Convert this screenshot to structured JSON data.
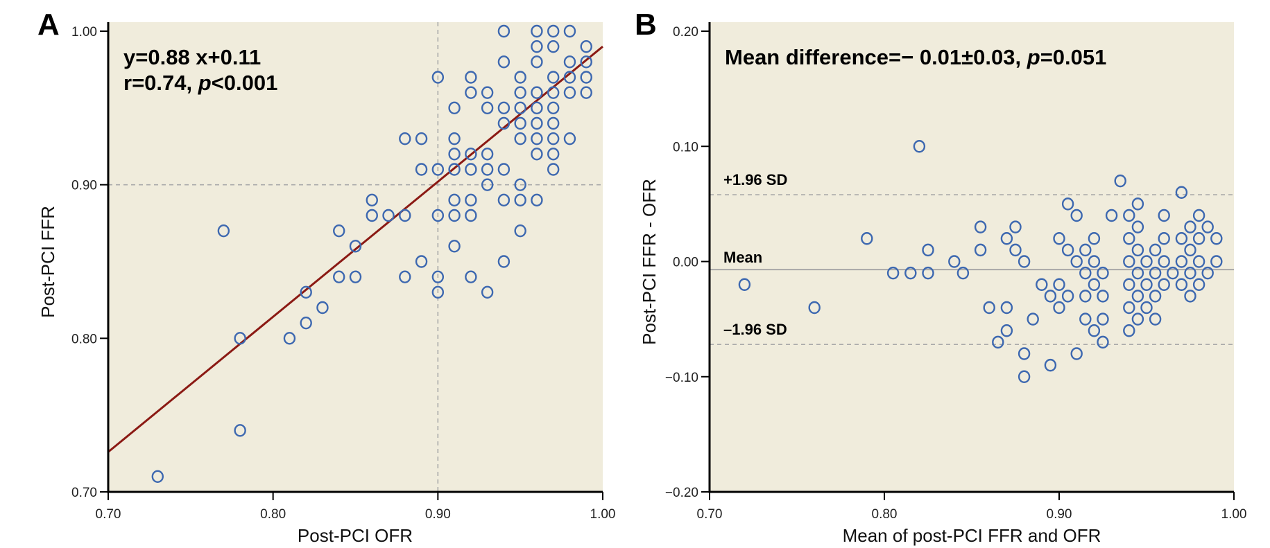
{
  "chart_data": [
    {
      "panel": "A",
      "type": "scatter",
      "title": "",
      "xlabel": "Post-PCI OFR",
      "ylabel": "Post-PCI FFR",
      "xlim": [
        0.7,
        1.0
      ],
      "ylim": [
        0.7,
        1.0
      ],
      "xticks": [
        "0.70",
        "0.80",
        "0.90",
        "1.00"
      ],
      "yticks": [
        "0.70",
        "0.80",
        "0.90",
        "1.00"
      ],
      "xtick_values": [
        0.7,
        0.8,
        0.9,
        1.0
      ],
      "ytick_values": [
        0.7,
        0.8,
        0.9,
        1.0
      ],
      "reference_lines": {
        "x": 0.9,
        "y": 0.9
      },
      "regression": {
        "slope": 0.88,
        "intercept": 0.11
      },
      "annotation": {
        "line1": "y=0.88 x+0.11",
        "line2_prefix": "r=0.74, ",
        "line2_p": "p",
        "line2_suffix": "<0.001"
      },
      "grid": false,
      "points": [
        [
          0.94,
          1.0
        ],
        [
          0.96,
          1.0
        ],
        [
          0.97,
          1.0
        ],
        [
          0.98,
          1.0
        ],
        [
          0.96,
          0.99
        ],
        [
          0.97,
          0.99
        ],
        [
          0.99,
          0.99
        ],
        [
          0.94,
          0.98
        ],
        [
          0.96,
          0.98
        ],
        [
          0.98,
          0.98
        ],
        [
          0.99,
          0.98
        ],
        [
          0.9,
          0.97
        ],
        [
          0.92,
          0.97
        ],
        [
          0.95,
          0.97
        ],
        [
          0.97,
          0.97
        ],
        [
          0.98,
          0.97
        ],
        [
          0.99,
          0.97
        ],
        [
          0.92,
          0.96
        ],
        [
          0.93,
          0.96
        ],
        [
          0.95,
          0.96
        ],
        [
          0.96,
          0.96
        ],
        [
          0.97,
          0.96
        ],
        [
          0.98,
          0.96
        ],
        [
          0.99,
          0.96
        ],
        [
          0.91,
          0.95
        ],
        [
          0.93,
          0.95
        ],
        [
          0.94,
          0.95
        ],
        [
          0.95,
          0.95
        ],
        [
          0.96,
          0.95
        ],
        [
          0.97,
          0.95
        ],
        [
          0.94,
          0.94
        ],
        [
          0.95,
          0.94
        ],
        [
          0.96,
          0.94
        ],
        [
          0.97,
          0.94
        ],
        [
          0.88,
          0.93
        ],
        [
          0.89,
          0.93
        ],
        [
          0.91,
          0.93
        ],
        [
          0.95,
          0.93
        ],
        [
          0.96,
          0.93
        ],
        [
          0.97,
          0.93
        ],
        [
          0.98,
          0.93
        ],
        [
          0.91,
          0.92
        ],
        [
          0.92,
          0.92
        ],
        [
          0.93,
          0.92
        ],
        [
          0.96,
          0.92
        ],
        [
          0.97,
          0.92
        ],
        [
          0.89,
          0.91
        ],
        [
          0.9,
          0.91
        ],
        [
          0.91,
          0.91
        ],
        [
          0.92,
          0.91
        ],
        [
          0.93,
          0.91
        ],
        [
          0.94,
          0.91
        ],
        [
          0.97,
          0.91
        ],
        [
          0.93,
          0.9
        ],
        [
          0.95,
          0.9
        ],
        [
          0.86,
          0.89
        ],
        [
          0.91,
          0.89
        ],
        [
          0.92,
          0.89
        ],
        [
          0.94,
          0.89
        ],
        [
          0.95,
          0.89
        ],
        [
          0.96,
          0.89
        ],
        [
          0.86,
          0.88
        ],
        [
          0.87,
          0.88
        ],
        [
          0.88,
          0.88
        ],
        [
          0.9,
          0.88
        ],
        [
          0.91,
          0.88
        ],
        [
          0.92,
          0.88
        ],
        [
          0.77,
          0.87
        ],
        [
          0.84,
          0.87
        ],
        [
          0.95,
          0.87
        ],
        [
          0.85,
          0.86
        ],
        [
          0.91,
          0.86
        ],
        [
          0.89,
          0.85
        ],
        [
          0.94,
          0.85
        ],
        [
          0.84,
          0.84
        ],
        [
          0.85,
          0.84
        ],
        [
          0.88,
          0.84
        ],
        [
          0.9,
          0.84
        ],
        [
          0.92,
          0.84
        ],
        [
          0.82,
          0.83
        ],
        [
          0.9,
          0.83
        ],
        [
          0.93,
          0.83
        ],
        [
          0.83,
          0.82
        ],
        [
          0.82,
          0.81
        ],
        [
          0.78,
          0.8
        ],
        [
          0.81,
          0.8
        ],
        [
          0.78,
          0.74
        ],
        [
          0.73,
          0.71
        ]
      ]
    },
    {
      "panel": "B",
      "type": "scatter",
      "title": "",
      "xlabel": "Mean of post-PCI FFR and OFR",
      "ylabel": "Post-PCI FFR - OFR",
      "xlim": [
        0.7,
        1.0
      ],
      "ylim": [
        -0.2,
        0.2
      ],
      "xticks": [
        "0.70",
        "0.80",
        "0.90",
        "1.00"
      ],
      "yticks": [
        "−0.20",
        "−0.10",
        "0.00",
        "0.10",
        "0.20"
      ],
      "xtick_values": [
        0.7,
        0.8,
        0.9,
        1.0
      ],
      "ytick_values": [
        -0.2,
        -0.1,
        0.0,
        0.1,
        0.2
      ],
      "mean_line": -0.007,
      "upper_loa": 0.058,
      "lower_loa": -0.072,
      "line_labels": {
        "upper": "+1.96 SD",
        "mean": "Mean",
        "lower": "–1.96 SD"
      },
      "annotation": {
        "prefix": "Mean difference=− 0.01±0.03, ",
        "p": "p",
        "suffix": "=0.051"
      },
      "grid": false,
      "points": [
        [
          0.72,
          -0.02
        ],
        [
          0.76,
          -0.04
        ],
        [
          0.79,
          0.02
        ],
        [
          0.805,
          -0.01
        ],
        [
          0.815,
          -0.01
        ],
        [
          0.82,
          0.1
        ],
        [
          0.825,
          0.01
        ],
        [
          0.825,
          -0.01
        ],
        [
          0.84,
          0.0
        ],
        [
          0.845,
          -0.01
        ],
        [
          0.855,
          0.03
        ],
        [
          0.855,
          0.01
        ],
        [
          0.86,
          -0.04
        ],
        [
          0.865,
          -0.07
        ],
        [
          0.87,
          0.02
        ],
        [
          0.87,
          -0.04
        ],
        [
          0.87,
          -0.06
        ],
        [
          0.875,
          0.03
        ],
        [
          0.875,
          0.01
        ],
        [
          0.88,
          0.0
        ],
        [
          0.88,
          -0.08
        ],
        [
          0.88,
          -0.1
        ],
        [
          0.885,
          -0.05
        ],
        [
          0.89,
          -0.02
        ],
        [
          0.895,
          -0.03
        ],
        [
          0.895,
          -0.09
        ],
        [
          0.9,
          0.02
        ],
        [
          0.9,
          -0.02
        ],
        [
          0.9,
          -0.04
        ],
        [
          0.905,
          0.05
        ],
        [
          0.905,
          0.01
        ],
        [
          0.905,
          -0.03
        ],
        [
          0.91,
          0.04
        ],
        [
          0.91,
          0.0
        ],
        [
          0.91,
          -0.08
        ],
        [
          0.915,
          0.01
        ],
        [
          0.915,
          -0.01
        ],
        [
          0.915,
          -0.03
        ],
        [
          0.915,
          -0.05
        ],
        [
          0.92,
          0.02
        ],
        [
          0.92,
          0.0
        ],
        [
          0.92,
          -0.02
        ],
        [
          0.92,
          -0.06
        ],
        [
          0.925,
          -0.01
        ],
        [
          0.925,
          -0.03
        ],
        [
          0.925,
          -0.05
        ],
        [
          0.925,
          -0.07
        ],
        [
          0.93,
          0.04
        ],
        [
          0.935,
          0.07
        ],
        [
          0.94,
          0.04
        ],
        [
          0.94,
          0.02
        ],
        [
          0.94,
          0.0
        ],
        [
          0.94,
          -0.02
        ],
        [
          0.94,
          -0.04
        ],
        [
          0.94,
          -0.06
        ],
        [
          0.945,
          0.05
        ],
        [
          0.945,
          0.03
        ],
        [
          0.945,
          0.01
        ],
        [
          0.945,
          -0.01
        ],
        [
          0.945,
          -0.03
        ],
        [
          0.945,
          -0.05
        ],
        [
          0.95,
          0.0
        ],
        [
          0.95,
          -0.02
        ],
        [
          0.95,
          -0.04
        ],
        [
          0.955,
          0.01
        ],
        [
          0.955,
          -0.01
        ],
        [
          0.955,
          -0.03
        ],
        [
          0.955,
          -0.05
        ],
        [
          0.96,
          0.04
        ],
        [
          0.96,
          0.02
        ],
        [
          0.96,
          0.0
        ],
        [
          0.96,
          -0.02
        ],
        [
          0.965,
          -0.01
        ],
        [
          0.97,
          0.06
        ],
        [
          0.97,
          0.02
        ],
        [
          0.97,
          0.0
        ],
        [
          0.97,
          -0.02
        ],
        [
          0.975,
          0.03
        ],
        [
          0.975,
          0.01
        ],
        [
          0.975,
          -0.01
        ],
        [
          0.975,
          -0.03
        ],
        [
          0.98,
          0.04
        ],
        [
          0.98,
          0.02
        ],
        [
          0.98,
          0.0
        ],
        [
          0.98,
          -0.02
        ],
        [
          0.985,
          0.03
        ],
        [
          0.985,
          -0.01
        ],
        [
          0.99,
          0.02
        ],
        [
          0.99,
          0.0
        ]
      ]
    }
  ],
  "panels": {
    "a_letter": "A",
    "b_letter": "B"
  }
}
